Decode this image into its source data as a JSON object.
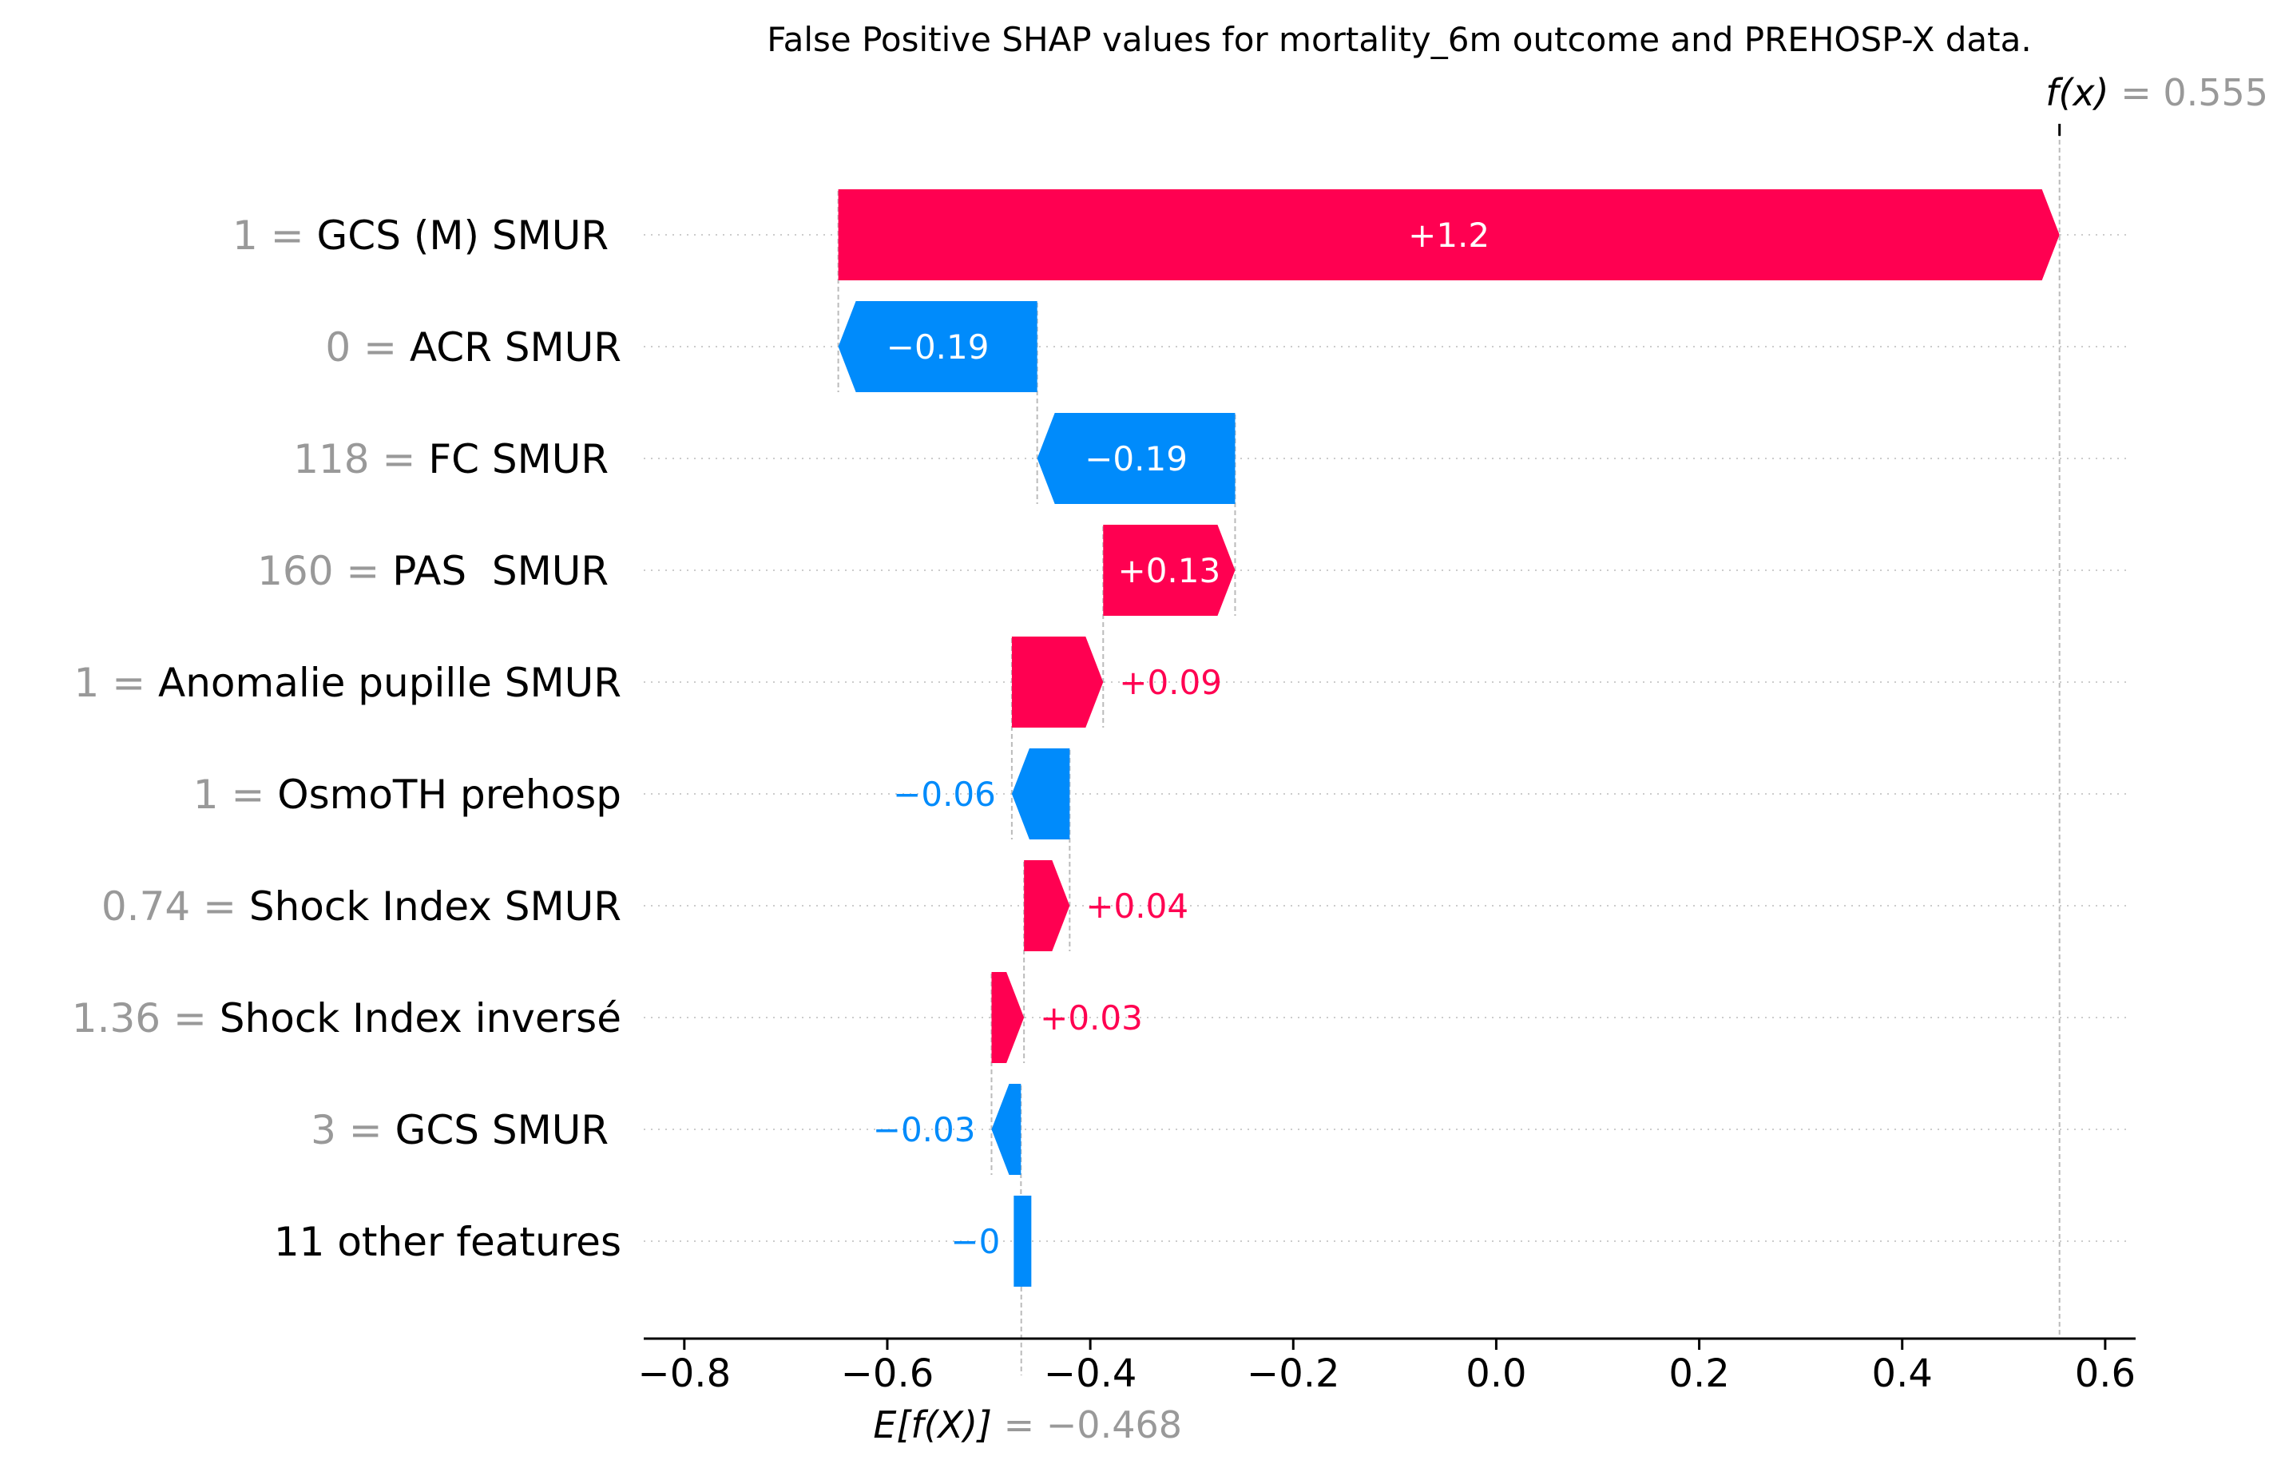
{
  "chart_data": {
    "type": "waterfall",
    "title": "False Positive SHAP values for mortality_6m outcome and PREHOSP-X data.",
    "xlim": [
      -0.84,
      0.63
    ],
    "xticks": [
      -0.8,
      -0.6,
      -0.4,
      -0.2,
      0.0,
      0.2,
      0.4,
      0.6
    ],
    "xtick_labels": [
      "−0.8",
      "−0.6",
      "−0.4",
      "−0.2",
      "0.0",
      "0.2",
      "0.4",
      "0.6"
    ],
    "base_value": -0.468,
    "base_label_prefix": "E[f(X)]",
    "base_label_value": "= −0.468",
    "output_value": 0.555,
    "output_label_prefix": "f(x)",
    "output_label_value": "= 0.555",
    "colors": {
      "positive": "#ff0051",
      "negative": "#008bfb",
      "value_gray": "#999999",
      "guide": "#bbbbbb"
    },
    "features": [
      {
        "value": "1",
        "name": "GCS (M) SMUR ",
        "start": -0.6483,
        "end": 0.555,
        "label": "+1.2"
      },
      {
        "value": "0",
        "name": "ACR SMUR",
        "start": -0.4523,
        "end": -0.6483,
        "label": "−0.19"
      },
      {
        "value": "118",
        "name": "FC SMUR ",
        "start": -0.2573,
        "end": -0.4523,
        "label": "−0.19"
      },
      {
        "value": "160",
        "name": "PAS  SMUR ",
        "start": -0.3873,
        "end": -0.2573,
        "label": "+0.13"
      },
      {
        "value": "1",
        "name": "Anomalie pupille SMUR",
        "start": -0.4773,
        "end": -0.3873,
        "label": "+0.09"
      },
      {
        "value": "1",
        "name": "OsmoTH prehosp",
        "start": -0.4203,
        "end": -0.4773,
        "label": "−0.06"
      },
      {
        "value": "0.74",
        "name": "Shock Index SMUR",
        "start": -0.4653,
        "end": -0.4203,
        "label": "+0.04"
      },
      {
        "value": "1.36",
        "name": "Shock Index inversé",
        "start": -0.4973,
        "end": -0.4653,
        "label": "+0.03"
      },
      {
        "value": "3",
        "name": "GCS SMUR ",
        "start": -0.4683,
        "end": -0.4973,
        "label": "−0.03"
      },
      {
        "value": "",
        "name": "11 other features",
        "start": -0.468,
        "end": -0.4683,
        "label": "−0"
      }
    ]
  }
}
